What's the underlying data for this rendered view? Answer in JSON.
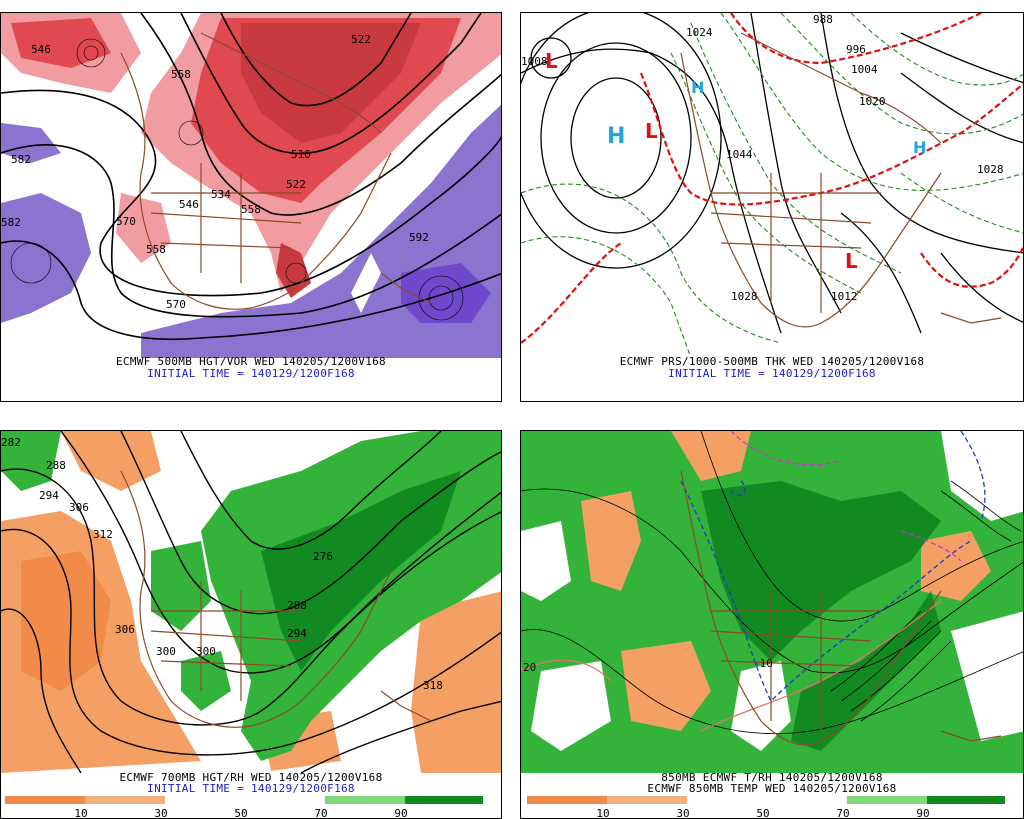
{
  "panels": [
    {
      "id": "p1",
      "caption_line1": "ECMWF 500MB HGT/VOR WED 140205/1200V168",
      "caption_line2": "INITIAL TIME = 140129/1200F168",
      "contour_labels": [
        "546",
        "570",
        "558",
        "510",
        "522",
        "534",
        "546",
        "558",
        "582",
        "570",
        "558",
        "522",
        "592",
        "582"
      ]
    },
    {
      "id": "p2",
      "caption_line1": "ECMWF PRS/1000-500MB THK WED 140205/1200V168",
      "caption_line2": "INITIAL TIME = 140129/1200F168",
      "contour_labels": [
        "1008",
        "1044",
        "1024",
        "1020",
        "1028",
        "1028",
        "1012",
        "996",
        "988",
        "1004"
      ]
    },
    {
      "id": "p3",
      "caption_line1": "ECMWF 700MB HGT/RH WED 140205/1200V168",
      "caption_line2": "INITIAL TIME = 140129/1200F168",
      "contour_labels": [
        "282",
        "288",
        "294",
        "300",
        "306",
        "312",
        "306",
        "300",
        "288",
        "276",
        "294",
        "318"
      ],
      "legend_ticks": [
        "10",
        "30",
        "50",
        "70",
        "90"
      ]
    },
    {
      "id": "p4",
      "caption_line1": "850MB ECMWF T/RH 140205/1200V168",
      "caption_line2": "ECMWF 850MB TEMP WED 140205/1200V168",
      "contour_labels": [
        "-10",
        "20"
      ],
      "legend_ticks": [
        "10",
        "30",
        "50",
        "70",
        "90"
      ]
    }
  ],
  "colors": {
    "vort_red": "#e0494f",
    "vort_pink": "#f09ca0",
    "negative_vort": "#8b73d0",
    "dry_orange": "#f4a064",
    "moist_green": "#33b33a",
    "caption_blue": "#1c1ccc",
    "highs": "#22a7d9",
    "lows": "#e01010"
  },
  "legend": {
    "colors": [
      "#f08a4a",
      "#f4b07a",
      "#ffffff",
      "#ffffff",
      "#7fd97a",
      "#33b33a",
      "#118a22"
    ]
  }
}
